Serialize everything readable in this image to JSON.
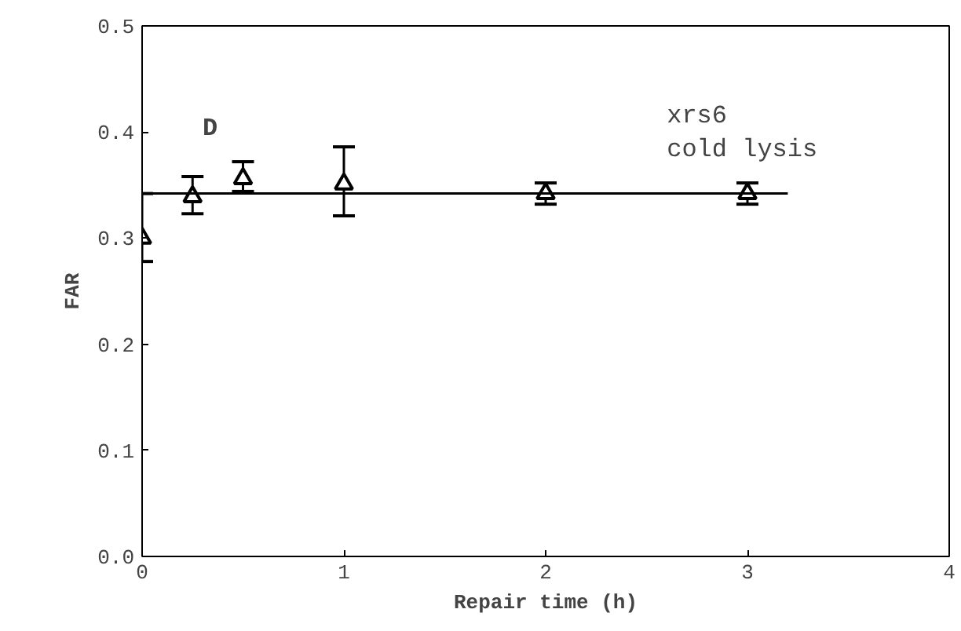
{
  "chart_data": {
    "type": "scatter",
    "xlabel": "Repair time (h)",
    "ylabel": "FAR",
    "annotations": [
      "D",
      "xrs6\ncold lysis"
    ],
    "x": [
      0,
      0.25,
      0.5,
      1,
      2,
      3
    ],
    "series": [
      {
        "color": "#000000",
        "marker": "triangle",
        "values": [
          0.3,
          0.339,
          0.356,
          0.351,
          0.342,
          0.342
        ],
        "errors": [
          [
            0.278,
            0.342
          ],
          [
            0.323,
            0.358
          ],
          [
            0.344,
            0.372
          ],
          [
            0.321,
            0.386
          ],
          [
            0.332,
            0.352
          ],
          [
            0.332,
            0.352
          ]
        ]
      },
      {
        "type": "line",
        "color": "#000000",
        "x": [
          0,
          3.2
        ],
        "values": [
          0.342,
          0.342
        ]
      }
    ],
    "xlim": [
      0,
      4
    ],
    "ylim": [
      0,
      0.5
    ],
    "xticks": [
      0,
      1,
      2,
      3,
      4
    ],
    "yticks": [
      {
        "value": 0,
        "label": "0.0"
      },
      0.1,
      0.2,
      0.3,
      0.4,
      0.5
    ],
    "grid": false
  }
}
